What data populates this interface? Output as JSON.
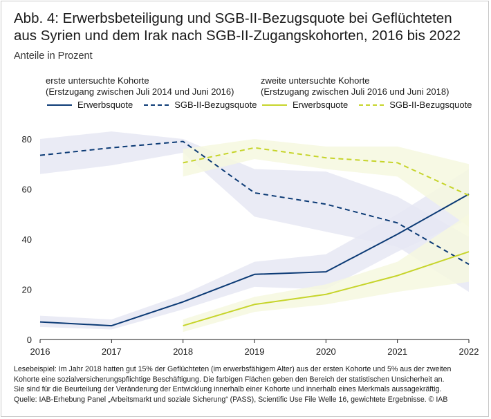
{
  "title": "Abb. 4: Erwerbsbeteiligung und SGB-II-Bezugsquote bei Geflüchteten aus Syrien und dem Irak nach SGB-II-Zugangskohorten, 2016 bis 2022",
  "subtitle": "Anteile in Prozent",
  "legend": {
    "cohort1": {
      "heading": "erste untersuchte Kohorte",
      "subheading": "(Erstzugang zwischen Juli 2014 und Juni 2016)",
      "items": [
        "Erwerbsquote",
        "SGB-II-Bezugsquote"
      ]
    },
    "cohort2": {
      "heading": "zweite untersuchte Kohorte",
      "subheading": "(Erstzugang zwischen Juli 2016 und Juni 2018)",
      "items": [
        "Erwerbsquote",
        "SGB-II-Bezugsquote"
      ]
    }
  },
  "colors": {
    "cohort1": "#0b3a75",
    "cohort1_band": "#e6e8f3",
    "cohort2": "#c6d42a",
    "cohort2_band": "#f6f8df",
    "axis": "#1a1a1a"
  },
  "footnote": {
    "line1": "Lesebeispiel: Im Jahr 2018 hatten gut 15% der Geflüchteten (im erwerbsfähigem Alter) aus der ersten Kohorte und 5% aus der zweiten",
    "line2": "Kohorte eine sozialversicherungspflichtige Beschäftigung. Die farbigen Flächen geben den Bereich der statistischen Unsicherheit an.",
    "line3": "Sie sind für die Beurteilung der Veränderung der Entwicklung innerhalb einer Kohorte und innerhalb eines Merkmals aussagekräftig.",
    "line4": "Quelle: IAB-Erhebung Panel „Arbeitsmarkt und soziale Sicherung“ (PASS), Scientific Use File Welle 16, gewichtete Ergebnisse.  © IAB"
  },
  "chart_data": {
    "type": "line",
    "x": [
      2016,
      2017,
      2018,
      2019,
      2020,
      2021,
      2022
    ],
    "xlabels": [
      "2016",
      "2017",
      "2018",
      "2019",
      "2020",
      "2021",
      "2022"
    ],
    "ylim": [
      0,
      80
    ],
    "yticks": [
      0,
      20,
      40,
      60,
      80
    ],
    "yticklabels": [
      "0",
      "20",
      "40",
      "60",
      "80"
    ],
    "grid": false,
    "series": [
      {
        "name": "Erwerbsquote (erste Kohorte)",
        "cohort": "cohort1",
        "dash": false,
        "x": [
          2016,
          2017,
          2018,
          2019,
          2020,
          2021,
          2022
        ],
        "values": [
          7,
          5.5,
          15,
          26,
          27,
          42,
          58
        ],
        "lower": [
          5,
          4,
          12,
          21,
          20,
          35,
          48
        ],
        "upper": [
          9.5,
          8,
          18,
          31,
          34,
          50,
          68
        ]
      },
      {
        "name": "SGB-II-Bezugsquote (erste Kohorte)",
        "cohort": "cohort1",
        "dash": true,
        "x": [
          2016,
          2017,
          2018,
          2019,
          2020,
          2021,
          2022
        ],
        "values": [
          73.5,
          76.5,
          79,
          58.5,
          54,
          46.5,
          30
        ],
        "lower": [
          66,
          69.5,
          74.5,
          49,
          43,
          37,
          19
        ],
        "upper": [
          80,
          83,
          80,
          68,
          67,
          57,
          41
        ]
      },
      {
        "name": "Erwerbsquote (zweite Kohorte)",
        "cohort": "cohort2",
        "dash": false,
        "x": [
          2018,
          2019,
          2020,
          2021,
          2022
        ],
        "values": [
          5.5,
          14,
          18,
          25.5,
          35
        ],
        "lower": [
          3,
          11,
          14,
          19,
          23
        ],
        "upper": [
          8,
          17,
          22,
          31,
          50
        ]
      },
      {
        "name": "SGB-II-Bezugsquote (zweite Kohorte)",
        "cohort": "cohort2",
        "dash": true,
        "x": [
          2018,
          2019,
          2020,
          2021,
          2022
        ],
        "values": [
          70.5,
          76.5,
          72.5,
          70.5,
          57.5
        ],
        "lower": [
          65,
          72,
          68,
          65,
          45
        ],
        "upper": [
          76,
          80,
          77,
          77,
          70
        ]
      }
    ]
  }
}
